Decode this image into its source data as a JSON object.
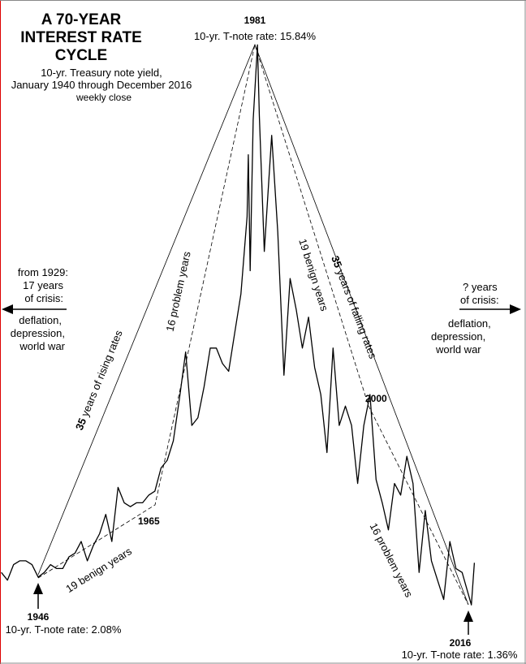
{
  "chart_data": {
    "type": "line",
    "title": [
      "A 70-YEAR",
      "INTEREST RATE",
      "CYCLE"
    ],
    "subtitle": [
      "10-yr. Treasury note yield,",
      "January 1940 through December 2016",
      "weekly close"
    ],
    "x": [
      1940,
      1941,
      1942,
      1943,
      1944,
      1945,
      1946,
      1947,
      1948,
      1949,
      1950,
      1951,
      1952,
      1953,
      1954,
      1955,
      1956,
      1957,
      1958,
      1959,
      1960,
      1961,
      1962,
      1963,
      1964,
      1965,
      1966,
      1967,
      1968,
      1969,
      1970,
      1971,
      1972,
      1973,
      1974,
      1975,
      1976,
      1977,
      1978,
      1979,
      1980,
      1980.2,
      1980.5,
      1981,
      1981.7,
      1982,
      1982.8,
      1983,
      1984,
      1985,
      1986,
      1987,
      1988,
      1989,
      1990,
      1991,
      1992,
      1993,
      1994,
      1995,
      1996,
      1997,
      1998,
      1999,
      2000,
      2001,
      2002,
      2003,
      2004,
      2005,
      2006,
      2007,
      2008,
      2009,
      2010,
      2011,
      2012,
      2013,
      2014,
      2015,
      2016.5,
      2016.99
    ],
    "values": [
      2.2,
      2.0,
      2.4,
      2.5,
      2.5,
      2.4,
      2.08,
      2.2,
      2.4,
      2.3,
      2.3,
      2.6,
      2.7,
      3.0,
      2.5,
      2.9,
      3.2,
      3.7,
      3.0,
      4.4,
      4.0,
      3.9,
      4.0,
      4.0,
      4.2,
      4.3,
      4.9,
      5.1,
      5.6,
      6.7,
      7.9,
      6.0,
      6.2,
      7.0,
      8.0,
      8.0,
      7.6,
      7.4,
      8.4,
      9.4,
      11.4,
      13.0,
      10.0,
      13.9,
      15.84,
      14.0,
      10.5,
      11.0,
      13.5,
      11.0,
      7.3,
      9.8,
      9.0,
      8.0,
      8.8,
      7.5,
      6.8,
      5.3,
      8.0,
      6.0,
      6.5,
      6.0,
      4.5,
      6.0,
      6.8,
      4.6,
      4.0,
      3.3,
      4.5,
      4.2,
      5.2,
      4.5,
      2.2,
      3.8,
      2.5,
      2.0,
      1.5,
      3.0,
      2.3,
      2.2,
      1.36,
      2.45
    ],
    "color": "#000000",
    "xlim": [
      1940,
      2025
    ],
    "ylim": [
      0,
      17
    ],
    "annotations": {
      "peak_year": "1981",
      "peak_rate": "10-yr. T-note rate: 15.84%",
      "left_crisis": [
        "from 1929:",
        "17 years",
        "of crisis:",
        "deflation,",
        "depression,",
        "world war"
      ],
      "right_crisis": [
        "? years",
        "of crisis:",
        "deflation,",
        "depression,",
        "world war"
      ],
      "rising_num": "35",
      "rising_text": " years of rising rates",
      "falling_num": "35",
      "falling_text": " years of falling rates",
      "problem_up": "16 problem years",
      "benign_down": "19 benign years",
      "benign_up": "19 benign years",
      "problem_down": "16 problem years",
      "y1965": "1965",
      "y2000": "2000",
      "start_year": "1946",
      "start_rate": "10-yr. T-note rate: 2.08%",
      "end_year": "2016",
      "end_rate": "10-yr. T-note rate: 1.36%"
    }
  }
}
